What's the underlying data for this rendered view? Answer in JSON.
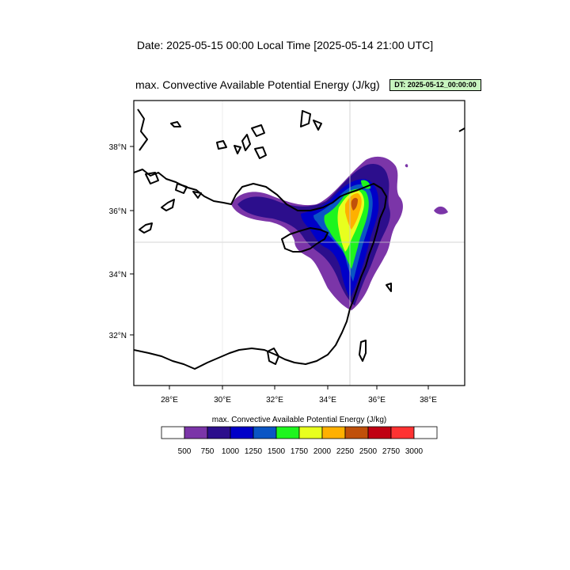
{
  "header": {
    "date_line": "Date: 2025-05-15  00:00 Local Time [2025-05-14  21:00 UTC]",
    "title": "max. Convective Available Potential Energy   (J/kg)",
    "dt_badge": "DT: 2025-05-12_00:00:00"
  },
  "map": {
    "lon_labels": [
      "28°E",
      "30°E",
      "32°E",
      "34°E",
      "36°E",
      "38°E"
    ],
    "lat_labels": [
      "38°N",
      "36°N",
      "34°N",
      "32°N"
    ],
    "gridlines": {
      "lon": "35°E",
      "lat": "35°N"
    }
  },
  "legend": {
    "title": "max. Convective Available Potential Energy  (J/kg)",
    "labels": [
      "500",
      "750",
      "1000",
      "1250",
      "1500",
      "1750",
      "2000",
      "2250",
      "2500",
      "2750",
      "3000"
    ],
    "colors": [
      "#ffffff",
      "#7b35a8",
      "#2c0e8c",
      "#0000c8",
      "#0a55c4",
      "#1ef51e",
      "#e8ff1e",
      "#ffb000",
      "#c0500a",
      "#c00012",
      "#ff3232",
      "#ffffff"
    ]
  },
  "colors": {
    "purple": "#7b35a8",
    "indigo": "#2c0e8c",
    "blue": "#0000c8",
    "royal": "#0a55c4",
    "green": "#1ef51e",
    "yellow": "#e8ff1e",
    "orange": "#ffb000",
    "brown": "#c0500a"
  }
}
